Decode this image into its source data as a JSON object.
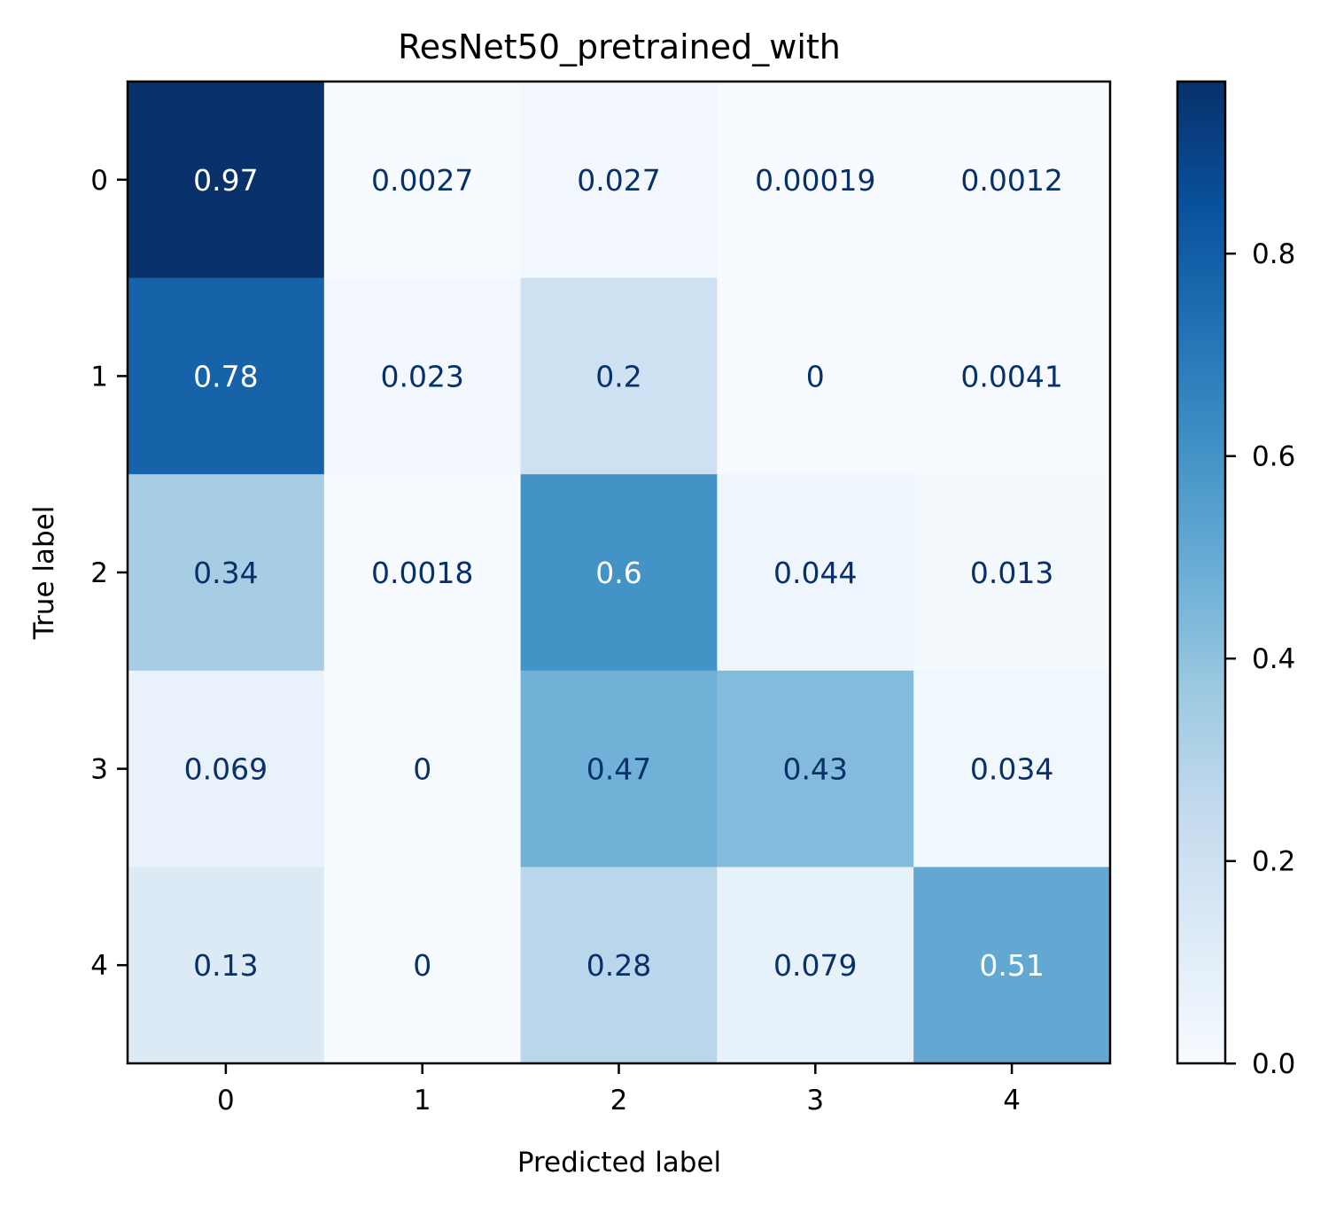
{
  "chart_data": {
    "type": "heatmap",
    "title": "ResNet50_pretrained_with",
    "xlabel": "Predicted label",
    "ylabel": "True label",
    "x_categories": [
      "0",
      "1",
      "2",
      "3",
      "4"
    ],
    "y_categories": [
      "0",
      "1",
      "2",
      "3",
      "4"
    ],
    "values": [
      [
        0.97,
        0.0027,
        0.027,
        0.00019,
        0.0012
      ],
      [
        0.78,
        0.023,
        0.2,
        0,
        0.0041
      ],
      [
        0.34,
        0.0018,
        0.6,
        0.044,
        0.013
      ],
      [
        0.069,
        0,
        0.47,
        0.43,
        0.034
      ],
      [
        0.13,
        0,
        0.28,
        0.079,
        0.51
      ]
    ],
    "value_labels": [
      [
        "0.97",
        "0.0027",
        "0.027",
        "0.00019",
        "0.0012"
      ],
      [
        "0.78",
        "0.023",
        "0.2",
        "0",
        "0.0041"
      ],
      [
        "0.34",
        "0.0018",
        "0.6",
        "0.044",
        "0.013"
      ],
      [
        "0.069",
        "0",
        "0.47",
        "0.43",
        "0.034"
      ],
      [
        "0.13",
        "0",
        "0.28",
        "0.079",
        "0.51"
      ]
    ],
    "colormap": "Blues",
    "colormap_stops": [
      "#f7fbff",
      "#deebf7",
      "#c6dbef",
      "#9ecae1",
      "#6baed6",
      "#4292c6",
      "#2171b5",
      "#08519c",
      "#08306b"
    ],
    "vmin": 0.00019,
    "vmax": 0.97,
    "colorbar": {
      "ticks": [
        0.0,
        0.2,
        0.4,
        0.6,
        0.8
      ],
      "tick_labels": [
        "0.0",
        "0.2",
        "0.4",
        "0.6",
        "0.8"
      ]
    },
    "text_color_dark": "#08306b",
    "text_color_light": "#ffffff",
    "grid": false
  }
}
